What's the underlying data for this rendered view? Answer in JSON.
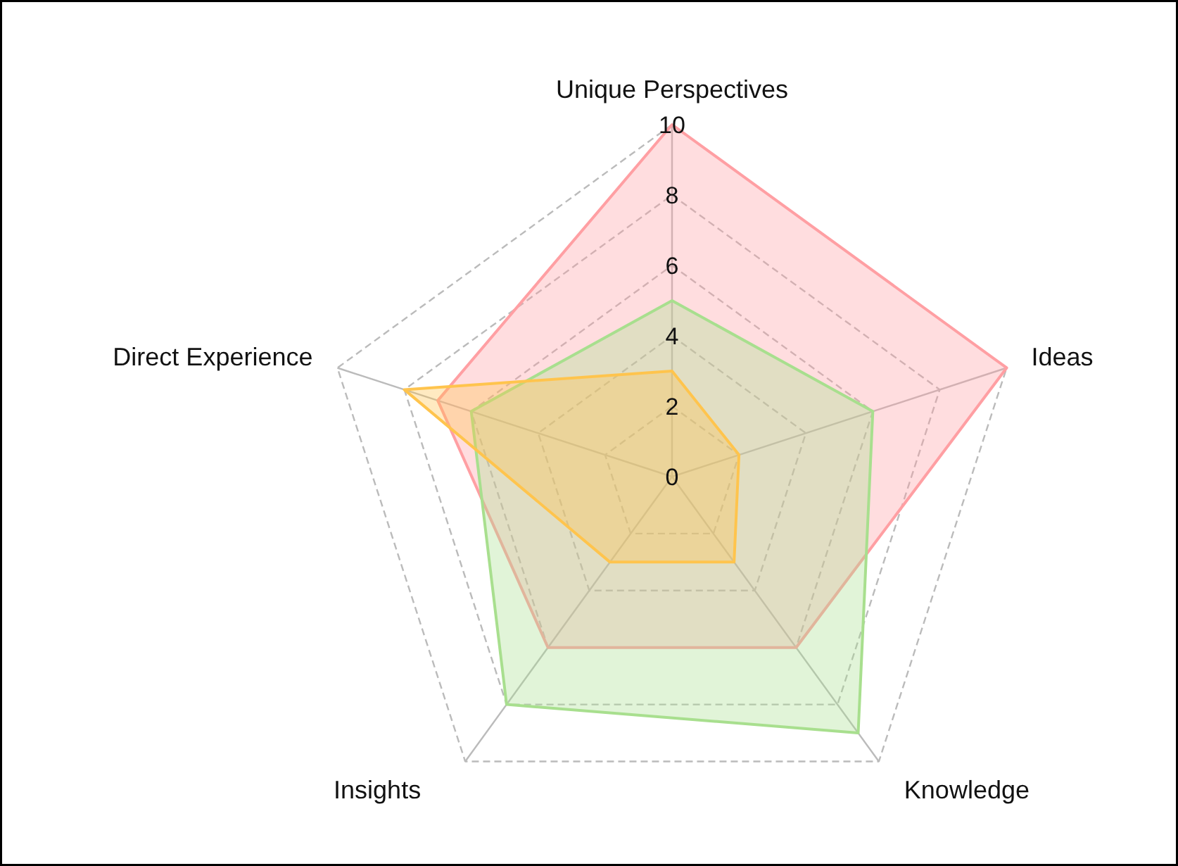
{
  "chart_data": {
    "type": "radar",
    "categories": [
      "Unique Perspectives",
      "Ideas",
      "Knowledge",
      "Insights",
      "Direct Experience"
    ],
    "ylim": [
      0,
      10
    ],
    "yticks": [
      0,
      2,
      4,
      6,
      8,
      10
    ],
    "grid": true,
    "series": [
      {
        "color": "#ff9fa3",
        "values": [
          10,
          10,
          6,
          6,
          7
        ]
      },
      {
        "color": "#a8df8e",
        "values": [
          5,
          6,
          9,
          8,
          6
        ]
      },
      {
        "color": "#ffc44d",
        "values": [
          3,
          2,
          3,
          3,
          8
        ]
      }
    ]
  }
}
